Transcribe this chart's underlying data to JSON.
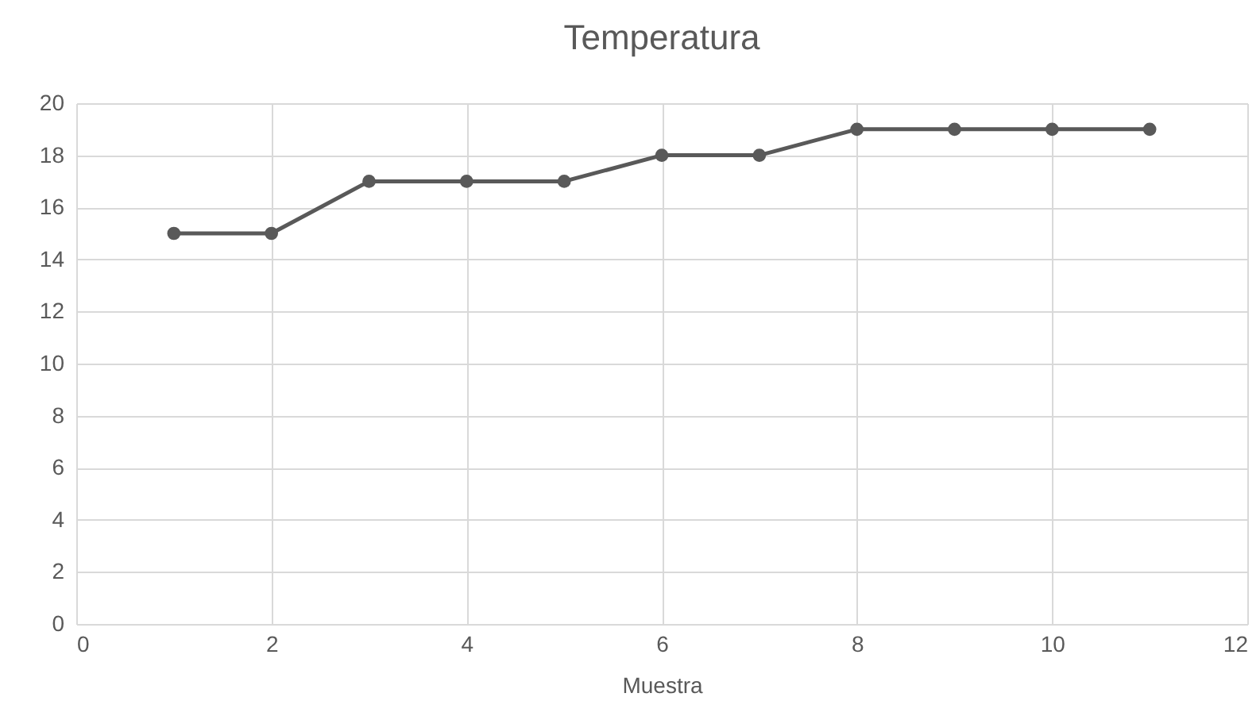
{
  "chart_data": {
    "type": "line",
    "title": "Temperatura",
    "xlabel": "Muestra",
    "x": [
      1,
      2,
      3,
      4,
      5,
      6,
      7,
      8,
      9,
      10,
      11
    ],
    "values": [
      15,
      15,
      17,
      17,
      17,
      18,
      18,
      19,
      19,
      19,
      19
    ],
    "color": "#595959",
    "xlim": [
      0,
      12
    ],
    "xticks": [
      0,
      2,
      4,
      6,
      8,
      10,
      12
    ],
    "ylim": [
      0,
      20
    ],
    "yticks": [
      0,
      2,
      4,
      6,
      8,
      10,
      12,
      14,
      16,
      18,
      20
    ],
    "grid": true,
    "marker": "circle"
  }
}
